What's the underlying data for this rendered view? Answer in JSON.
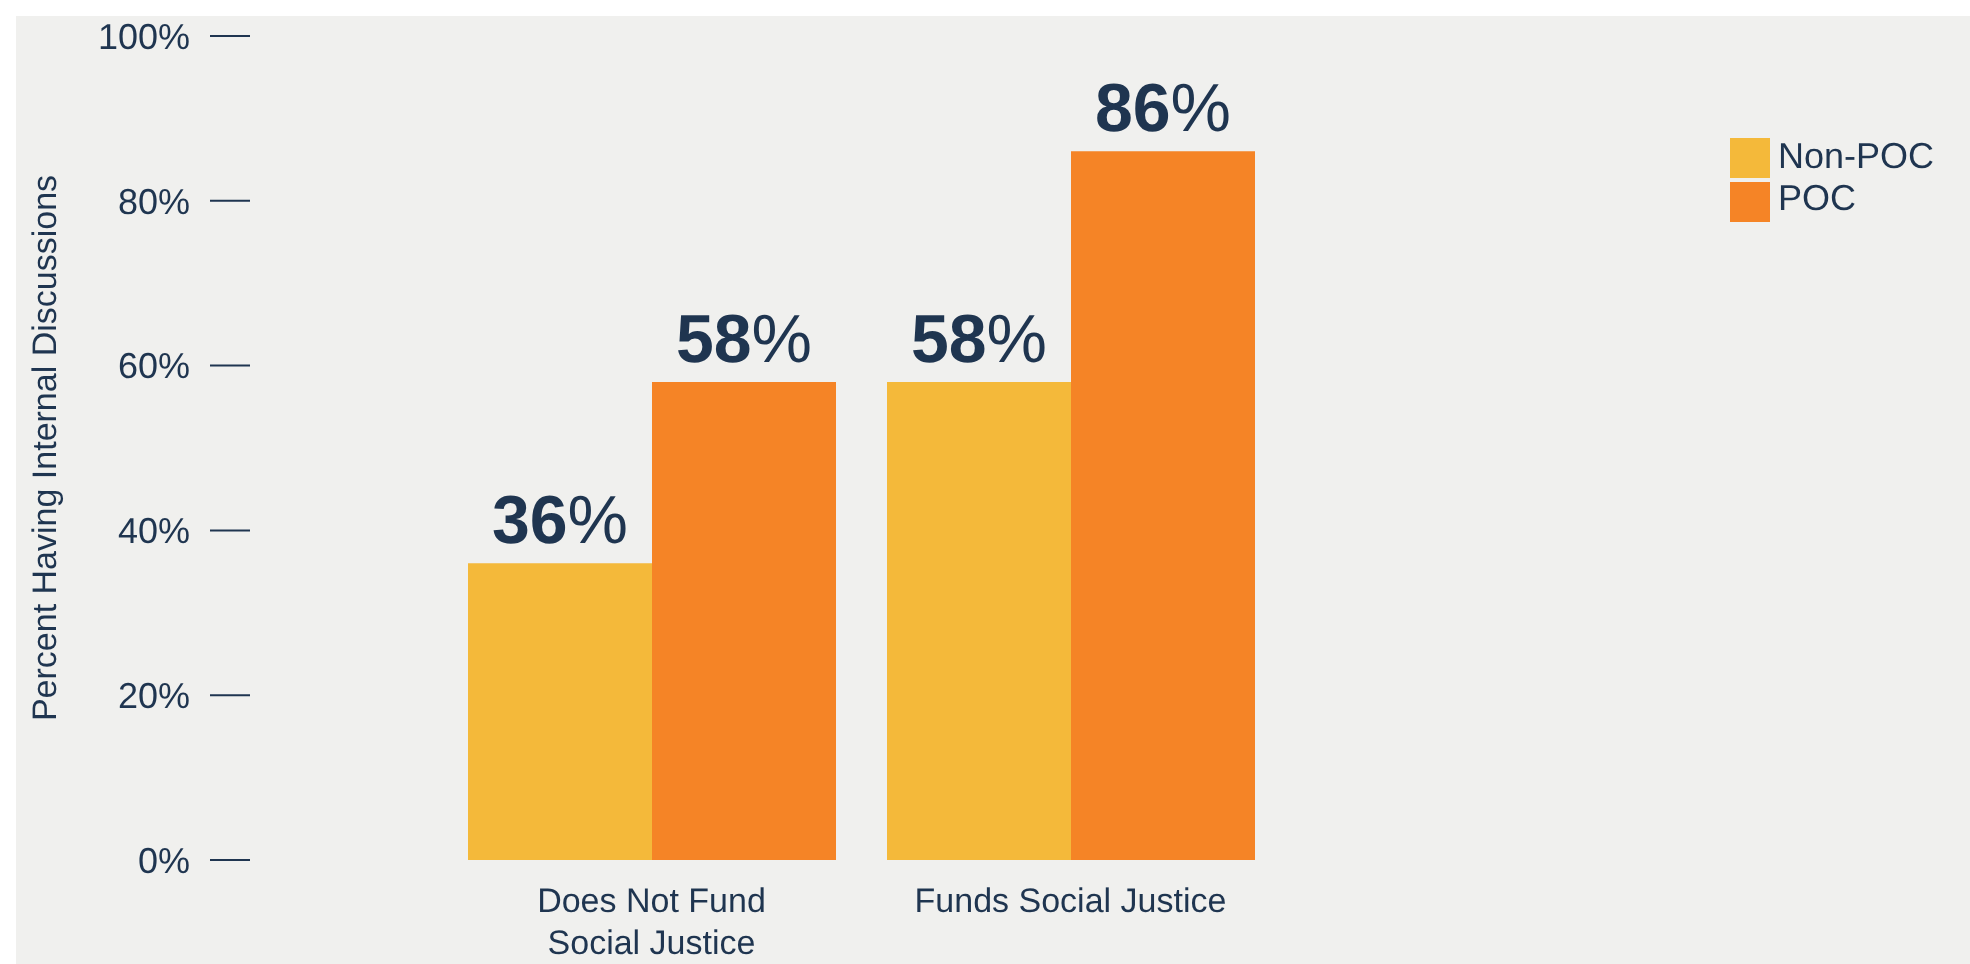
{
  "chart_data": {
    "type": "bar",
    "ylabel": "Percent Having Internal Discussions",
    "categories": [
      "Does Not Fund Social Justice",
      "Funds Social Justice"
    ],
    "series": [
      {
        "name": "Non-POC",
        "color": "#f4b93a",
        "values": [
          36,
          58
        ],
        "value_labels": [
          "36%",
          "58%"
        ]
      },
      {
        "name": "POC",
        "color": "#f58426",
        "values": [
          58,
          86
        ],
        "value_labels": [
          "58%",
          "86%"
        ]
      }
    ],
    "ylim": [
      0,
      100
    ],
    "yticks": [
      {
        "value": 0,
        "label": "0%"
      },
      {
        "value": 20,
        "label": "20%"
      },
      {
        "value": 40,
        "label": "40%"
      },
      {
        "value": 60,
        "label": "60%"
      },
      {
        "value": 80,
        "label": "80%"
      },
      {
        "value": 100,
        "label": "100%"
      }
    ],
    "grid": false,
    "legend": "top right"
  }
}
